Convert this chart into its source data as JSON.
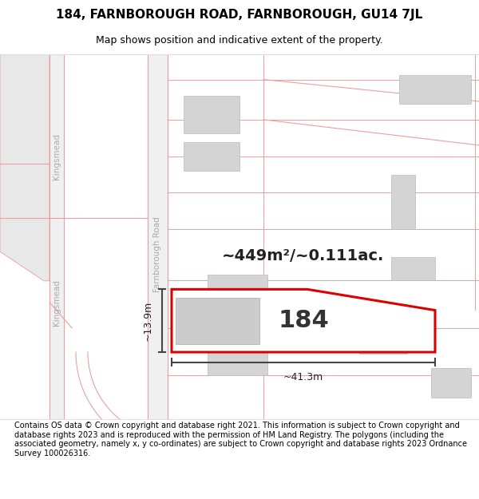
{
  "title": "184, FARNBOROUGH ROAD, FARNBOROUGH, GU14 7JL",
  "subtitle": "Map shows position and indicative extent of the property.",
  "footer": "Contains OS data © Crown copyright and database right 2021. This information is subject to Crown copyright and database rights 2023 and is reproduced with the permission of HM Land Registry. The polygons (including the associated geometry, namely x, y co-ordinates) are subject to Crown copyright and database rights 2023 Ordnance Survey 100026316.",
  "plot_color_red": "#dd0000",
  "area_label": "~449m²/~0.111ac.",
  "number_label": "184",
  "width_label": "~41.3m",
  "height_label": "~13.9m",
  "road_label_kingsmead1": "Kingsmead",
  "road_label_kingsmead2": "Kingsmead",
  "road_label_farnborough": "Farnborough Road",
  "building_color": "#d4d4d4",
  "road_line_color": "#e8a0a0",
  "map_bg": "#f8f8f8",
  "white": "#ffffff",
  "dark_gray": "#555555",
  "text_color": "#222222",
  "title_fontsize": 11,
  "subtitle_fontsize": 9,
  "footer_fontsize": 7
}
